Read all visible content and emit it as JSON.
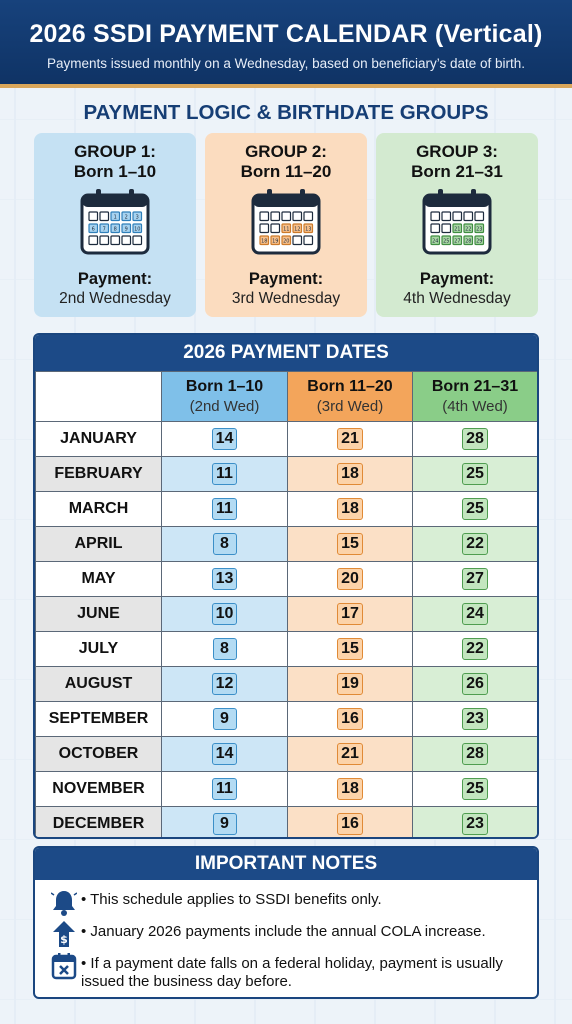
{
  "header": {
    "title": "2026 SSDI PAYMENT CALENDAR (Vertical)",
    "subtitle": "Payments issued monthly on a Wednesday, based on beneficiary’s date of birth."
  },
  "logic": {
    "title": "PAYMENT LOGIC & BIRTHDATE GROUPS",
    "groups": [
      {
        "title": "GROUP 1:",
        "born": "Born 1–10",
        "payment_label": "Payment:",
        "payment": "2nd Wednesday",
        "color": "#c5e1f3",
        "days": [
          "1",
          "2",
          "3",
          "6",
          "7",
          "8",
          "9",
          "10"
        ]
      },
      {
        "title": "GROUP 2:",
        "born": "Born 11–20",
        "payment_label": "Payment:",
        "payment": "3rd Wednesday",
        "color": "#fbdcbf",
        "days": [
          "11",
          "12",
          "13",
          "18",
          "19",
          "20"
        ]
      },
      {
        "title": "GROUP 3:",
        "born": "Born 21–31",
        "payment_label": "Payment:",
        "payment": "4th Wednesday",
        "color": "#d3ead0",
        "days": [
          "21",
          "22",
          "23",
          "24",
          "25",
          "27",
          "28",
          "29",
          "30",
          "31"
        ]
      }
    ]
  },
  "table": {
    "title": "2026 PAYMENT DATES",
    "columns": [
      {
        "label": "Born 1–10",
        "sub": "(2nd Wed)"
      },
      {
        "label": "Born 11–20",
        "sub": "(3rd Wed)"
      },
      {
        "label": "Born 21–31",
        "sub": "(4th Wed)"
      }
    ],
    "rows": [
      {
        "month": "JANUARY",
        "d1": "14",
        "d2": "21",
        "d3": "28"
      },
      {
        "month": "FEBRUARY",
        "d1": "11",
        "d2": "18",
        "d3": "25"
      },
      {
        "month": "MARCH",
        "d1": "11",
        "d2": "18",
        "d3": "25"
      },
      {
        "month": "APRIL",
        "d1": "8",
        "d2": "15",
        "d3": "22"
      },
      {
        "month": "MAY",
        "d1": "13",
        "d2": "20",
        "d3": "27"
      },
      {
        "month": "JUNE",
        "d1": "10",
        "d2": "17",
        "d3": "24"
      },
      {
        "month": "JULY",
        "d1": "8",
        "d2": "15",
        "d3": "22"
      },
      {
        "month": "AUGUST",
        "d1": "12",
        "d2": "19",
        "d3": "26"
      },
      {
        "month": "SEPTEMBER",
        "d1": "9",
        "d2": "16",
        "d3": "23"
      },
      {
        "month": "OCTOBER",
        "d1": "14",
        "d2": "21",
        "d3": "28"
      },
      {
        "month": "NOVEMBER",
        "d1": "11",
        "d2": "18",
        "d3": "25"
      },
      {
        "month": "DECEMBER",
        "d1": "9",
        "d2": "16",
        "d3": "23"
      }
    ]
  },
  "notes": {
    "title": "IMPORTANT NOTES",
    "items": [
      {
        "icon": "bell-icon",
        "text": "• This schedule applies to SSDI benefits only."
      },
      {
        "icon": "dollar-arrow-up-icon",
        "text": "• January 2026 payments include the annual COLA increase."
      },
      {
        "icon": "calendar-x-icon",
        "text": "• If a payment date falls on a federal holiday, payment is usually issued the business day before."
      }
    ]
  },
  "colors": {
    "header_bg": "#17427c",
    "accent_gold": "#d9a65a",
    "group1": "#7fc0e9",
    "group2": "#f3a55b",
    "group3": "#8acd88"
  }
}
